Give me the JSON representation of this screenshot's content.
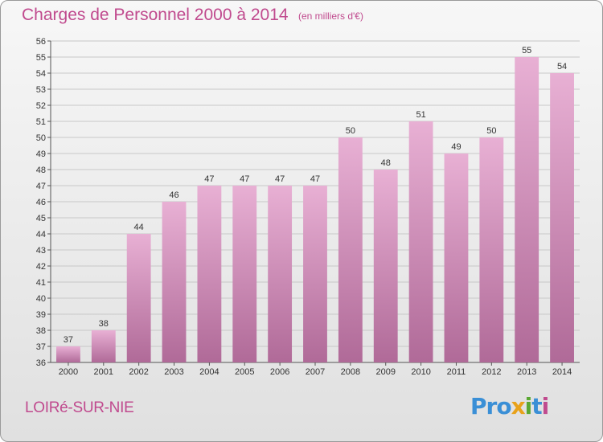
{
  "title": "Charges de Personnel 2000 à 2014",
  "subtitle": "(en milliers d'€)",
  "commune": "LOIRé-SUR-NIE",
  "logo": {
    "parts": [
      "Pro",
      "x",
      "i",
      "t",
      "i"
    ],
    "full": "Proxiti"
  },
  "colors": {
    "accent": "#c04a8e",
    "bar_top": "#e8b0d4",
    "bar_bottom": "#b06a98"
  },
  "chart_data": {
    "type": "bar",
    "categories": [
      "2000",
      "2001",
      "2002",
      "2003",
      "2004",
      "2005",
      "2006",
      "2007",
      "2008",
      "2009",
      "2010",
      "2011",
      "2012",
      "2013",
      "2014"
    ],
    "values": [
      37,
      38,
      44,
      46,
      47,
      47,
      47,
      47,
      50,
      48,
      51,
      49,
      50,
      55,
      54
    ],
    "ylim": [
      36,
      56
    ],
    "yticks": [
      36,
      37,
      38,
      39,
      40,
      41,
      42,
      43,
      44,
      45,
      46,
      47,
      48,
      49,
      50,
      51,
      52,
      53,
      54,
      55,
      56
    ],
    "grid": true,
    "xlabel": "",
    "ylabel": ""
  }
}
